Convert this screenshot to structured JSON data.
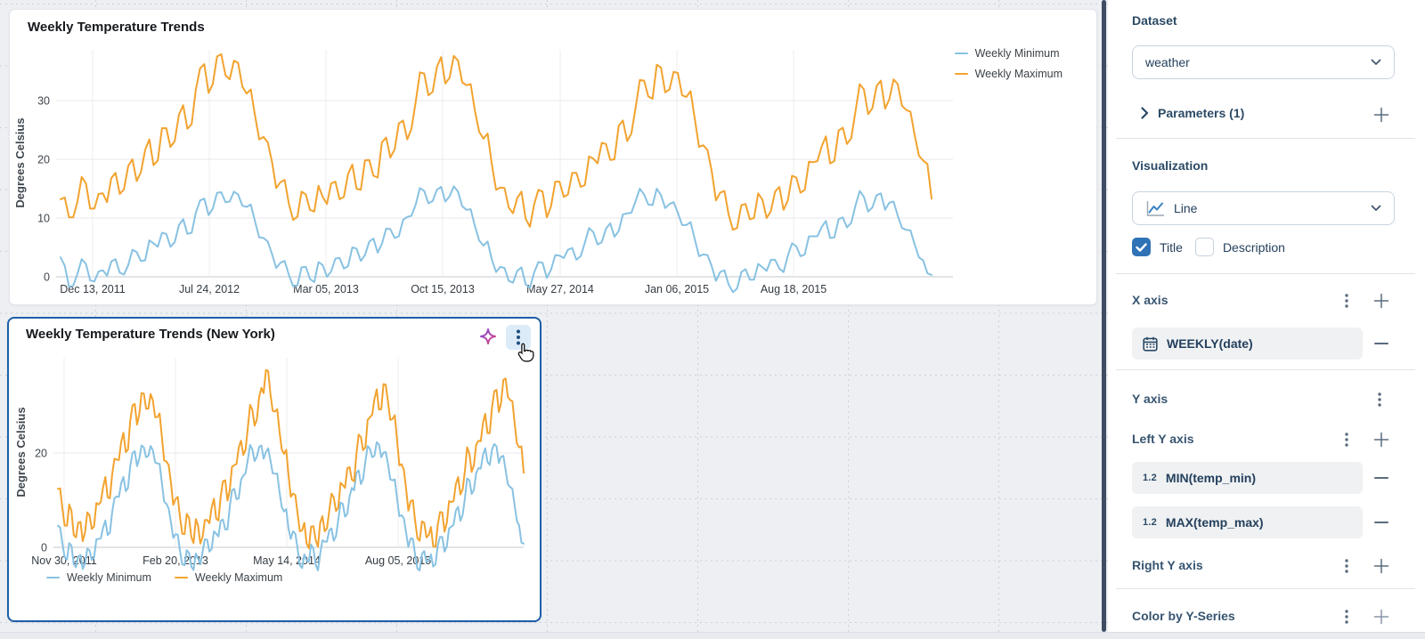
{
  "chart_data": [
    {
      "type": "line",
      "title": "Weekly Temperature Trends",
      "ylabel": "Degrees Celsius",
      "x_ticks": [
        "Dec 13, 2011",
        "Jul 24, 2012",
        "Mar 05, 2013",
        "Oct 15, 2013",
        "May 27, 2014",
        "Jan 06, 2015",
        "Aug 18, 2015"
      ],
      "y_ticks": [
        0,
        10,
        20,
        30
      ],
      "ylim": [
        -3,
        38.5
      ],
      "legend_position": "top-right",
      "grid": true,
      "series": [
        {
          "name": "Weekly Minimum",
          "color": "#88C2E2",
          "values": [
            3.3,
            1.9,
            -1.7,
            -1.5,
            0.5,
            3.0,
            2.2,
            -0.6,
            -0.8,
            0.9,
            1.1,
            0.2,
            2.6,
            3.0,
            0.7,
            0.4,
            2.0,
            4.6,
            4.2,
            2.7,
            2.8,
            6.2,
            5.7,
            5.1,
            7.5,
            7.3,
            5.1,
            5.9,
            8.8,
            9.8,
            7.3,
            7.5,
            10.9,
            13.0,
            13.3,
            10.5,
            11.6,
            14.3,
            14.4,
            12.7,
            12.8,
            14.5,
            14.0,
            12.1,
            11.9,
            12.3,
            9.4,
            6.7,
            6.6,
            6.0,
            3.9,
            1.5,
            2.4,
            2.7,
            0.3,
            -1.6,
            -1.5,
            1.6,
            1.7,
            -0.4,
            -0.9,
            2.5,
            2.0,
            0.0,
            0.9,
            3.1,
            3.2,
            1.4,
            1.8,
            5.0,
            4.8,
            2.7,
            3.7,
            6.0,
            6.5,
            4.1,
            5.6,
            8.2,
            8.1,
            6.6,
            6.9,
            9.7,
            10.2,
            10.4,
            12.3,
            15.1,
            14.6,
            12.5,
            12.9,
            14.8,
            15.3,
            12.8,
            13.7,
            15.4,
            14.5,
            12.0,
            11.4,
            11.5,
            8.6,
            6.2,
            5.3,
            6.0,
            2.9,
            0.8,
            1.7,
            1.5,
            -0.7,
            -1.0,
            1.0,
            1.6,
            -1.3,
            -1.9,
            0.7,
            2.5,
            2.4,
            -0.2,
            1.2,
            3.7,
            3.6,
            3.2,
            4.6,
            4.9,
            2.9,
            3.5,
            5.8,
            8.3,
            7.6,
            5.5,
            5.9,
            8.2,
            9.1,
            6.8,
            7.8,
            10.6,
            10.8,
            10.9,
            12.9,
            15.0,
            14.0,
            12.3,
            12.2,
            15.0,
            13.9,
            11.7,
            12.4,
            12.7,
            10.9,
            8.8,
            8.8,
            9.3,
            6.4,
            3.5,
            3.8,
            3.7,
            1.8,
            -0.7,
            0.8,
            1.1,
            -1.3,
            -2.6,
            -2.0,
            0.8,
            1.3,
            -0.5,
            -0.5,
            2.2,
            1.6,
            1.0,
            2.9,
            2.9,
            1.4,
            0.8,
            3.6,
            5.7,
            5.2,
            3.5,
            3.8,
            6.9,
            6.9,
            6.9,
            8.5,
            9.5,
            6.6,
            6.7,
            9.8,
            10.1,
            8.4,
            9.2,
            12.1,
            14.6,
            13.6,
            11.1,
            11.8,
            13.9,
            14.2,
            11.4,
            12.6,
            12.8,
            10.4,
            8.3,
            8.0,
            7.9,
            5.5,
            3.3,
            2.8,
            0.6,
            0.3
          ]
        },
        {
          "name": "Weekly Maximum",
          "color": "#F2A32F",
          "values": [
            13.2,
            13.5,
            10.1,
            10.1,
            12.8,
            17.0,
            15.9,
            11.6,
            11.6,
            14.1,
            14.2,
            12.7,
            16.8,
            17.7,
            14.1,
            14.9,
            18.9,
            20.0,
            16.3,
            17.8,
            21.6,
            23.4,
            19.0,
            19.8,
            25.3,
            25.3,
            22.1,
            23.1,
            27.6,
            29.2,
            25.2,
            26.0,
            31.9,
            35.5,
            36.2,
            31.3,
            32.8,
            37.5,
            37.9,
            34.3,
            33.6,
            36.8,
            36.4,
            32.4,
            31.2,
            31.9,
            27.4,
            23.4,
            23.8,
            22.9,
            19.6,
            15.1,
            16.1,
            16.5,
            12.4,
            9.7,
            10.2,
            14.5,
            14.0,
            11.4,
            11.1,
            15.5,
            13.6,
            12.4,
            15.9,
            16.2,
            13.2,
            13.6,
            17.5,
            19.1,
            15.0,
            14.8,
            19.8,
            19.9,
            17.2,
            16.9,
            22.9,
            23.7,
            20.3,
            21.7,
            26.1,
            26.6,
            23.4,
            25.2,
            29.8,
            34.8,
            34.6,
            30.9,
            31.5,
            35.7,
            37.4,
            32.9,
            33.9,
            37.6,
            36.8,
            33.1,
            32.6,
            32.8,
            28.2,
            24.7,
            23.5,
            24.4,
            19.1,
            14.8,
            15.2,
            15.1,
            11.8,
            10.8,
            13.4,
            14.5,
            9.9,
            8.5,
            12.3,
            14.8,
            14.5,
            10.1,
            12.0,
            16.2,
            16.2,
            13.6,
            14.0,
            17.7,
            17.7,
            15.3,
            15.6,
            20.5,
            20.1,
            19.3,
            22.8,
            22.6,
            19.9,
            20.0,
            25.7,
            26.6,
            23.1,
            24.4,
            28.8,
            33.5,
            33.4,
            30.7,
            30.3,
            36.1,
            35.6,
            31.4,
            31.9,
            34.9,
            34.7,
            30.9,
            30.6,
            31.6,
            26.9,
            22.1,
            22.4,
            21.6,
            18.0,
            13.0,
            14.3,
            14.6,
            10.6,
            8.0,
            8.3,
            12.2,
            12.4,
            9.8,
            10.0,
            14.2,
            13.1,
            10.0,
            11.2,
            14.5,
            15.3,
            11.4,
            13.0,
            17.2,
            16.9,
            14.3,
            14.8,
            19.6,
            19.5,
            19.7,
            22.2,
            23.9,
            19.3,
            19.7,
            24.9,
            25.4,
            22.6,
            23.6,
            28.1,
            32.8,
            31.9,
            27.7,
            28.7,
            32.5,
            33.4,
            28.6,
            30.2,
            33.6,
            32.8,
            29.1,
            28.4,
            28.1,
            24.1,
            20.6,
            19.8,
            19.2,
            13.3
          ]
        }
      ]
    },
    {
      "type": "line",
      "title": "Weekly Temperature Trends (New York)",
      "ylabel": "Degrees Celsius",
      "x_ticks": [
        "Nov 30, 2011",
        "Feb 20, 2013",
        "May 14, 2014",
        "Aug 05, 2015"
      ],
      "y_ticks": [
        0,
        20
      ],
      "ylim": [
        -6,
        40
      ],
      "legend_position": "bottom-left",
      "grid": true,
      "series": [
        {
          "name": "Weekly Minimum",
          "color": "#88C2E2",
          "values": [
            4.6,
            4.2,
            0.8,
            -2.1,
            -2.6,
            0.9,
            0.4,
            -3.6,
            -4.2,
            -2.0,
            -1.6,
            -4.6,
            -3.4,
            -0.3,
            -0.6,
            -2.7,
            -2.2,
            1.7,
            1.8,
            1.9,
            4.2,
            5.7,
            2.6,
            3.1,
            7.4,
            10.4,
            10.8,
            10.7,
            13.6,
            14.9,
            11.9,
            12.6,
            17.2,
            20.0,
            20.4,
            17.2,
            18.8,
            21.6,
            21.2,
            19.1,
            19.4,
            21.5,
            20.6,
            18.0,
            17.8,
            17.7,
            13.6,
            9.7,
            9.2,
            8.2,
            5.4,
            2.0,
            2.8,
            2.7,
            -0.8,
            -3.6,
            -3.8,
            -0.6,
            -1.2,
            -4.1,
            -4.8,
            -1.3,
            -2.4,
            -3.6,
            -0.9,
            1.7,
            1.6,
            -0.9,
            -0.4,
            3.4,
            2.9,
            2.3,
            5.6,
            5.9,
            3.8,
            3.8,
            8.6,
            12.1,
            12.4,
            10.2,
            10.4,
            14.3,
            15.2,
            15.7,
            18.6,
            21.7,
            20.8,
            18.3,
            19.2,
            21.3,
            21.6,
            18.8,
            20.2,
            21.0,
            18.4,
            15.7,
            15.6,
            15.6,
            11.8,
            8.6,
            7.6,
            8.1,
            3.9,
            1.8,
            3.4,
            2.9,
            -0.2,
            -3.8,
            -4.4,
            -1.5,
            -2.8,
            -3.1,
            0.6,
            -0.3,
            -3.6,
            -4.9,
            -1.4,
            1.5,
            1.2,
            1.2,
            3.6,
            4.0,
            1.4,
            2.4,
            5.8,
            9.5,
            9.2,
            6.5,
            7.1,
            10.8,
            12.6,
            12.1,
            15.8,
            16.3,
            13.4,
            14.5,
            18.2,
            21.5,
            20.9,
            19.1,
            19.4,
            22.3,
            21.8,
            19.1,
            20.1,
            20.2,
            17.6,
            14.4,
            14.2,
            14.4,
            10.4,
            6.6,
            6.8,
            6.2,
            3.1,
            0.1,
            1.9,
            1.8,
            -1.6,
            -4.5,
            -4.9,
            -1.4,
            -0.8,
            -3.1,
            -2.9,
            -1.5,
            -4.1,
            -3.6,
            0.4,
            2.2,
            2.2,
            -0.9,
            0.2,
            4.0,
            4.4,
            4.8,
            7.8,
            8.6,
            5.6,
            6.9,
            10.4,
            14.6,
            14.2,
            11.3,
            12.2,
            15.8,
            16.8,
            16.7,
            19.6,
            21.0,
            18.1,
            17.5,
            20.8,
            21.9,
            21.4,
            17.9,
            19.2,
            19.4,
            16.4,
            13.4,
            12.8,
            12.4,
            8.9,
            5.6,
            4.6,
            1.0,
            0.8
          ]
        },
        {
          "name": "Weekly Maximum",
          "color": "#F2A32F",
          "values": [
            12.4,
            12.5,
            8.2,
            4.6,
            4.6,
            9.1,
            7.8,
            2.6,
            2.1,
            5.2,
            5.4,
            1.3,
            3.2,
            7.4,
            6.8,
            3.9,
            4.4,
            9.4,
            9.1,
            9.6,
            12.8,
            14.9,
            10.6,
            10.4,
            15.4,
            18.8,
            18.6,
            18.5,
            22.4,
            24.3,
            20.2,
            20.7,
            26.8,
            30.1,
            30.4,
            26.0,
            28.2,
            32.7,
            32.6,
            29.4,
            29.4,
            32.5,
            31.2,
            27.6,
            27.6,
            28.4,
            23.4,
            18.4,
            18.2,
            17.4,
            13.8,
            9.0,
            10.2,
            10.7,
            6.4,
            2.9,
            2.8,
            7.1,
            6.2,
            2.2,
            0.9,
            6.0,
            4.6,
            0.8,
            2.2,
            5.8,
            5.8,
            5.1,
            8.4,
            10.3,
            6.1,
            5.7,
            10.8,
            14.0,
            14.2,
            9.9,
            12.1,
            17.1,
            17.4,
            17.7,
            21.2,
            22.6,
            19.6,
            20.7,
            25.4,
            30.2,
            29.2,
            25.8,
            27.1,
            31.9,
            33.8,
            32.7,
            37.6,
            37.4,
            32.4,
            28.9,
            28.8,
            29.3,
            24.6,
            20.8,
            19.8,
            20.7,
            15.2,
            10.7,
            11.4,
            11.1,
            7.2,
            3.4,
            3.6,
            5.2,
            0.8,
            -0.2,
            4.4,
            4.5,
            1.6,
            0.1,
            5.2,
            6.6,
            3.4,
            4.0,
            7.8,
            11.4,
            10.6,
            7.7,
            8.4,
            13.7,
            13.2,
            12.6,
            16.8,
            17.0,
            14.4,
            14.0,
            19.6,
            23.9,
            23.4,
            20.6,
            21.2,
            27.0,
            27.6,
            28.1,
            31.4,
            33.5,
            29.2,
            29.3,
            34.6,
            34.5,
            30.8,
            27.0,
            27.2,
            28.0,
            22.8,
            17.4,
            17.6,
            16.5,
            12.4,
            7.8,
            9.8,
            10.0,
            5.6,
            1.9,
            1.4,
            5.5,
            5.2,
            2.1,
            2.6,
            4.3,
            0.2,
            0.1,
            4.8,
            7.5,
            7.4,
            3.3,
            5.2,
            9.8,
            9.6,
            9.8,
            13.4,
            14.9,
            11.2,
            12.3,
            16.2,
            21.2,
            19.8,
            16.0,
            17.4,
            21.8,
            22.6,
            22.5,
            26.4,
            28.3,
            24.2,
            24.2,
            29.8,
            33.1,
            33.4,
            28.7,
            30.6,
            35.5,
            35.8,
            31.9,
            31.2,
            31.0,
            26.4,
            22.0,
            21.2,
            21.4,
            15.8
          ]
        }
      ]
    }
  ],
  "sidebar": {
    "dataset_label": "Dataset",
    "dataset_value": "weather",
    "parameters_label": "Parameters (1)",
    "visualization_label": "Visualization",
    "viz_type": "Line",
    "title_checkbox": "Title",
    "description_checkbox": "Description",
    "x_axis_label": "X axis",
    "x_field": "WEEKLY(date)",
    "y_axis_label": "Y axis",
    "left_y_label": "Left Y axis",
    "left_fields": [
      "MIN(temp_min)",
      "MAX(temp_max)"
    ],
    "numeric_type_label": "1.2",
    "right_y_label": "Right Y axis",
    "color_by_label": "Color by Y-Series"
  },
  "colors": {
    "selected_card_border": "#1e5fa8",
    "checkbox_checked": "#2f72b5",
    "min_series": "#88C2E2",
    "max_series": "#F2A32F"
  }
}
